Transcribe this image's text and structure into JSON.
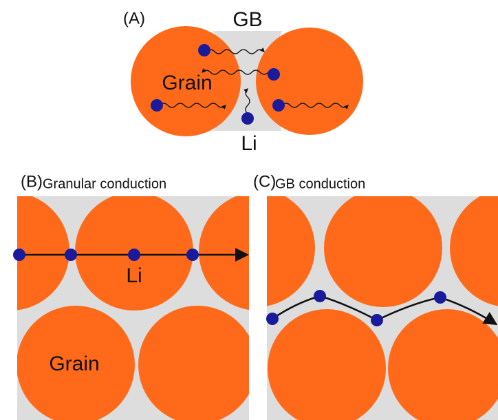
{
  "panel_a": {
    "label": "(A)",
    "gb": "GB",
    "grain": "Grain",
    "li": "Li"
  },
  "panel_b": {
    "label": "(B)",
    "title": "Granular conduction",
    "li": "Li",
    "grain": "Grain"
  },
  "panel_c": {
    "label": "(C)",
    "title": "GB conduction"
  }
}
